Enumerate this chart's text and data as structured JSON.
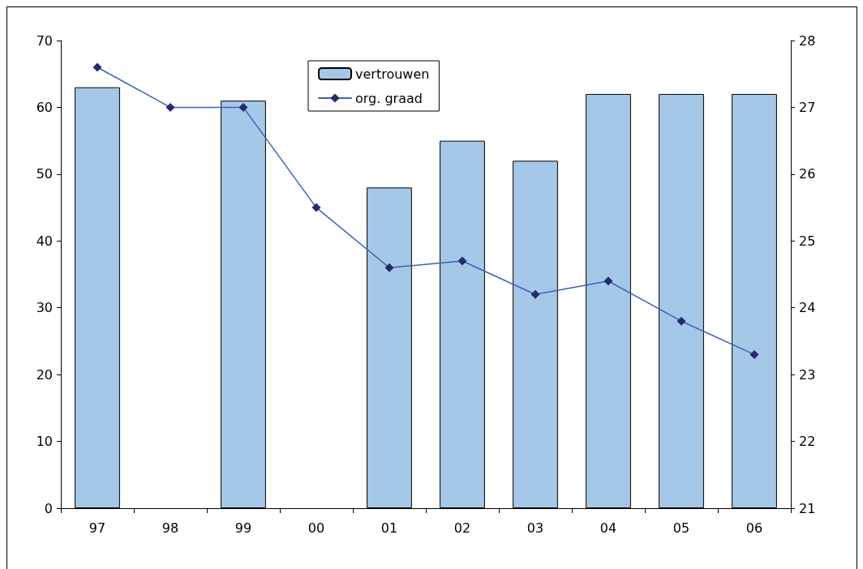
{
  "chart_data": {
    "type": "bar",
    "categories": [
      "97",
      "98",
      "99",
      "00",
      "01",
      "02",
      "03",
      "04",
      "05",
      "06"
    ],
    "series": [
      {
        "name": "vertrouwen",
        "color": "#a6c8e8",
        "values": [
          63,
          null,
          61,
          null,
          48,
          55,
          52,
          62,
          62,
          62
        ]
      },
      {
        "name": "org. graad",
        "type": "line",
        "axis": "y2",
        "color": "#3a64b8",
        "values": [
          27.6,
          27.0,
          27.0,
          25.5,
          24.6,
          24.7,
          24.2,
          24.4,
          23.8,
          23.3
        ]
      }
    ],
    "ylim": [
      0,
      70
    ],
    "yticks": [
      0,
      10,
      20,
      30,
      40,
      50,
      60,
      70
    ],
    "y2lim": [
      21,
      28
    ],
    "y2ticks": [
      21,
      22,
      23,
      24,
      25,
      26,
      27,
      28
    ],
    "grid": false,
    "legend": "top",
    "marker": "diamond",
    "line_style": "solid"
  }
}
